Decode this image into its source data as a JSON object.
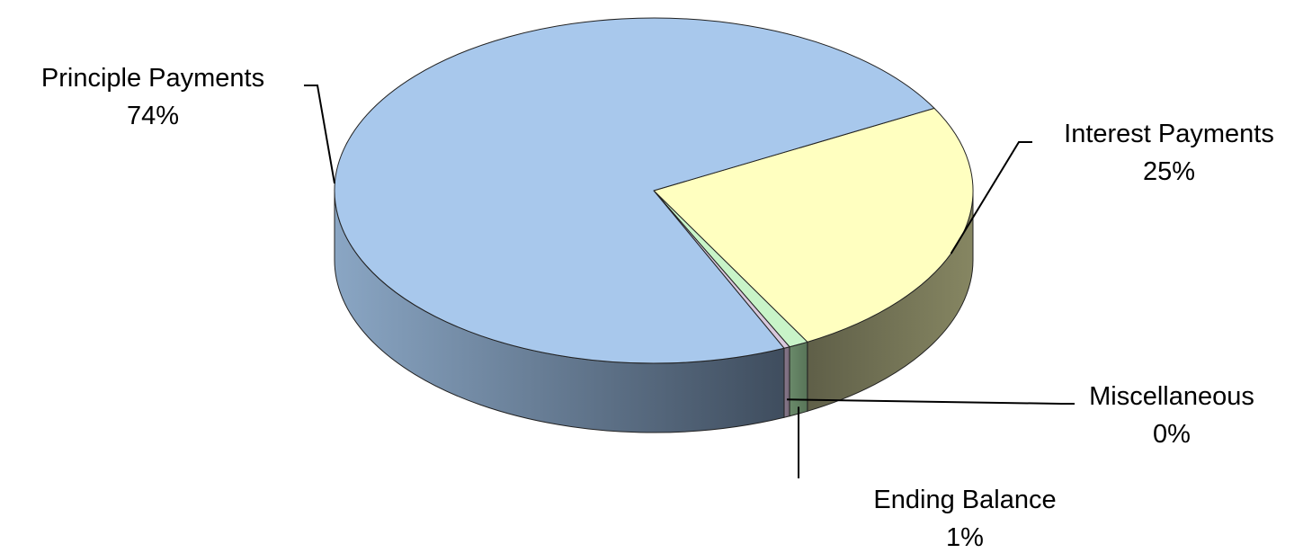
{
  "chart_data": {
    "type": "pie",
    "style": "3d",
    "title": "",
    "slices": [
      {
        "key": "interest",
        "label": "Interest Payments",
        "percent_label": "25%",
        "value": 25,
        "color": "#ffffc0"
      },
      {
        "key": "ending",
        "label": "Ending Balance",
        "percent_label": "1%",
        "value": 1,
        "color": "#c8f4c8"
      },
      {
        "key": "misc",
        "label": "Miscellaneous",
        "percent_label": "0%",
        "value": 0.3,
        "color": "#d8c8dc"
      },
      {
        "key": "principle",
        "label": "Principle Payments",
        "percent_label": "74%",
        "value": 74,
        "color": "#a8c8ec"
      }
    ]
  }
}
